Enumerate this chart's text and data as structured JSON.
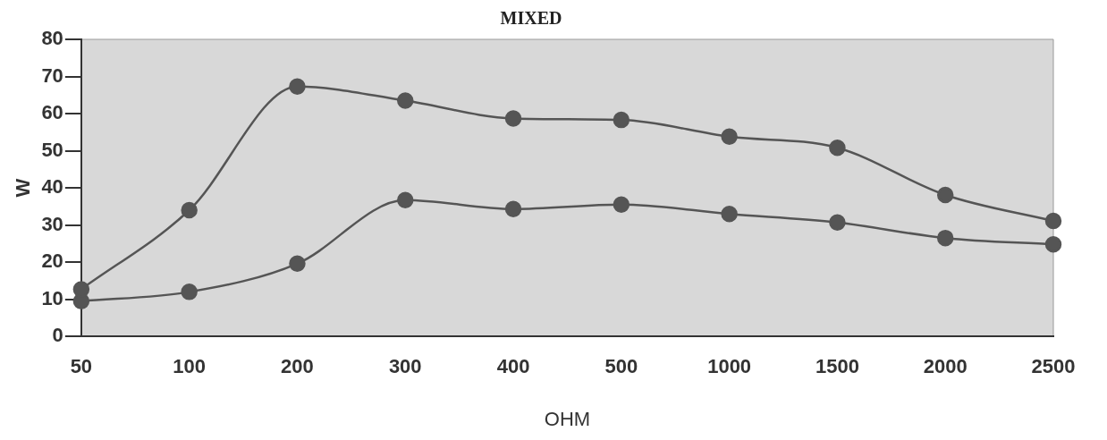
{
  "chart_data": {
    "type": "line",
    "title": "MIXED",
    "xlabel": "OHM",
    "ylabel": "W",
    "categories": [
      "50",
      "100",
      "200",
      "300",
      "400",
      "500",
      "1000",
      "1500",
      "2000",
      "2500"
    ],
    "series": [
      {
        "color": "#555555",
        "values": [
          12.7,
          34,
          67.3,
          63.5,
          58.7,
          58.3,
          53.8,
          50.8,
          38.1,
          31.1
        ]
      },
      {
        "color": "#555555",
        "values": [
          9.5,
          12,
          19.6,
          36.7,
          34.3,
          35.5,
          33,
          30.7,
          26.5,
          24.8
        ]
      }
    ],
    "ylim": [
      0,
      80
    ],
    "yticks": [
      0,
      10,
      20,
      30,
      40,
      50,
      60,
      70,
      80
    ],
    "grid": false,
    "legend": false,
    "marker": "circle",
    "line_style": "solid"
  }
}
